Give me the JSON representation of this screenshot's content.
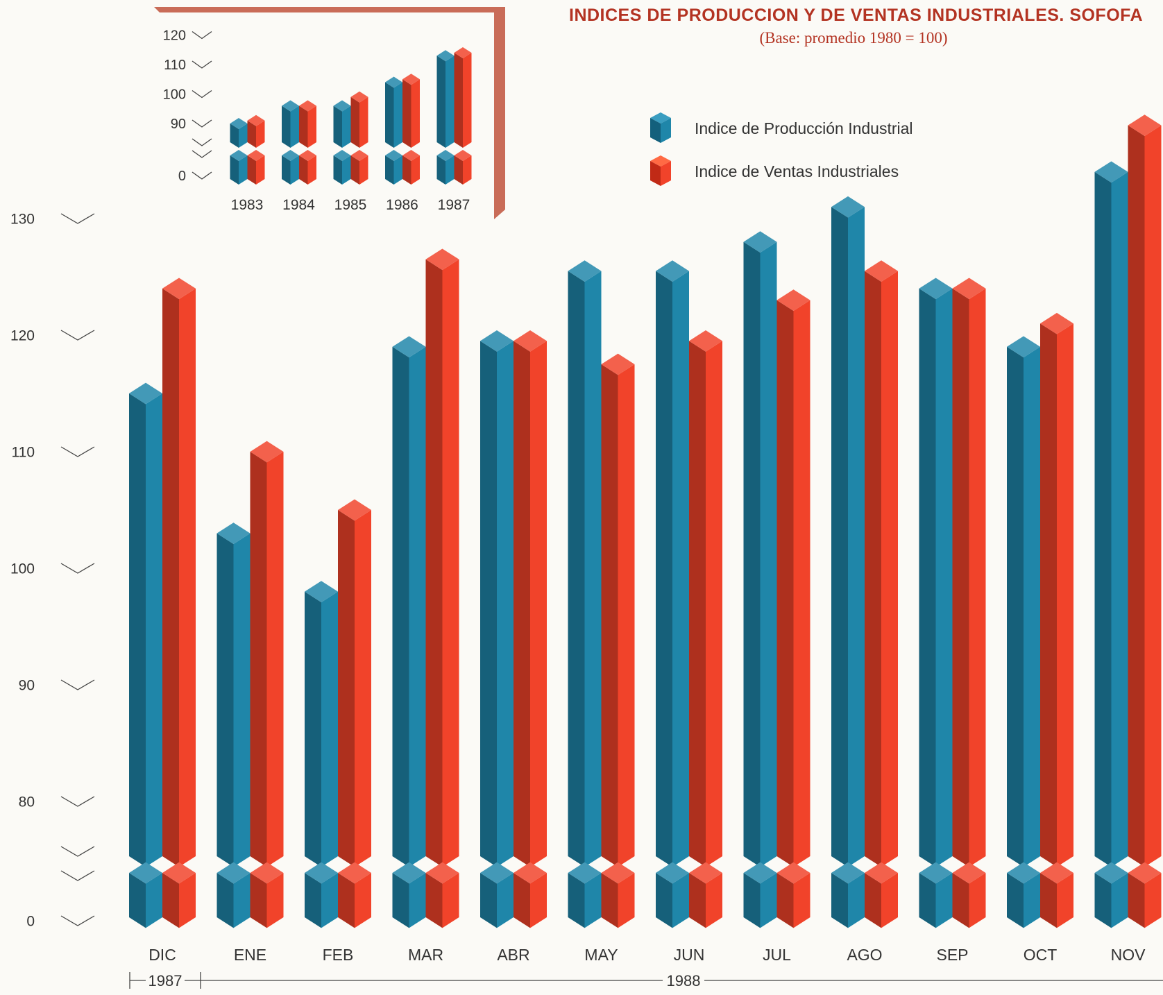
{
  "colors": {
    "production": "#1f86a9",
    "sales": "#f1432a",
    "frame": "#c96c58",
    "axis": "#444444",
    "title": "#b33322"
  },
  "header": {
    "title": "INDICES DE PRODUCCION Y DE VENTAS INDUSTRIALES. SOFOFA",
    "subtitle": "(Base: promedio 1980 = 100)"
  },
  "legend": {
    "production": "Indice de Producción Industrial",
    "sales": "Indice de Ventas Industriales"
  },
  "chart_data": [
    {
      "type": "bar",
      "title": "INDICES DE PRODUCCION Y DE VENTAS INDUSTRIALES. SOFOFA",
      "subtitle": "(Base: promedio 1980 = 100)",
      "categories": [
        "DIC",
        "ENE",
        "FEB",
        "MAR",
        "ABR",
        "MAY",
        "JUN",
        "JUL",
        "AGO",
        "SEP",
        "OCT",
        "NOV"
      ],
      "period_labels": [
        "1987",
        "1988"
      ],
      "series": [
        {
          "name": "Indice de Producción Industrial",
          "values": [
            115,
            103,
            98,
            119,
            119.5,
            125.5,
            125.5,
            128,
            131,
            124,
            119,
            134
          ]
        },
        {
          "name": "Indice de Ventas Industriales",
          "values": [
            124,
            110,
            105,
            126.5,
            119.5,
            117.5,
            119.5,
            123,
            125.5,
            124,
            121,
            138
          ]
        }
      ],
      "y_ticks": [
        0,
        80,
        90,
        100,
        110,
        120,
        130
      ],
      "axis_break": true,
      "ylim": [
        0,
        130
      ],
      "legend_position": "top-right"
    },
    {
      "type": "bar",
      "categories": [
        "1983",
        "1984",
        "1985",
        "1986",
        "1987"
      ],
      "series": [
        {
          "name": "Indice de Producción Industrial",
          "values": [
            90,
            96,
            96,
            104,
            113
          ]
        },
        {
          "name": "Indice de Ventas Industriales",
          "values": [
            91,
            96,
            99,
            105,
            114
          ]
        }
      ],
      "y_ticks": [
        0,
        90,
        100,
        110,
        120
      ],
      "axis_break": true,
      "ylim": [
        0,
        120
      ]
    }
  ]
}
